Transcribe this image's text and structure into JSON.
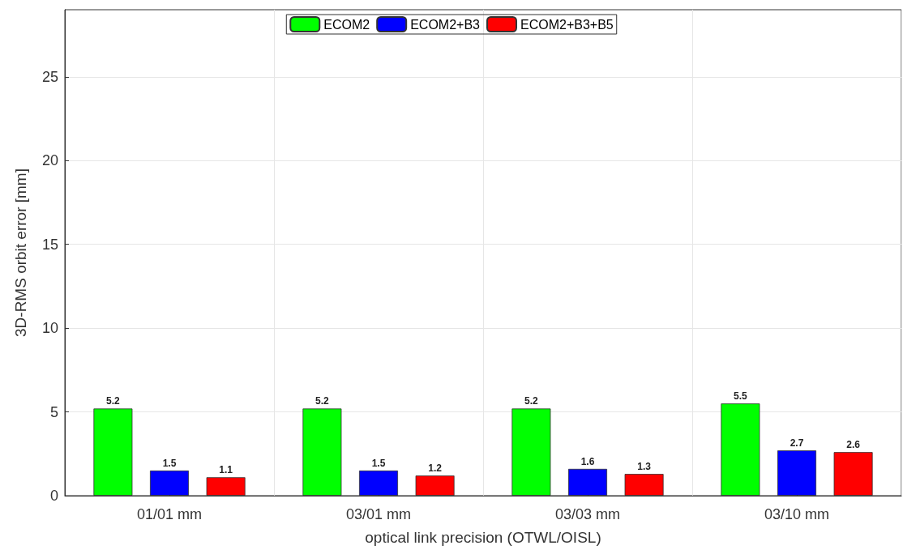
{
  "chart_data": {
    "type": "bar",
    "xlabel": "optical link precision (OTWL/OISL)",
    "ylabel": "3D-RMS orbit error [mm]",
    "categories": [
      "01/01 mm",
      "03/01 mm",
      "03/03 mm",
      "03/10 mm"
    ],
    "series": [
      {
        "name": "ECOM2",
        "color": "#00ff00",
        "values": [
          5.2,
          5.2,
          5.2,
          5.5
        ]
      },
      {
        "name": "ECOM2+B3",
        "color": "#0000ff",
        "values": [
          1.5,
          1.5,
          1.6,
          2.7
        ]
      },
      {
        "name": "ECOM2+B3+B5",
        "color": "#ff0000",
        "values": [
          1.1,
          1.2,
          1.3,
          2.6
        ]
      }
    ],
    "ylim": [
      0,
      29
    ],
    "yticks": [
      0,
      5,
      10,
      15,
      20,
      25
    ],
    "grid": true,
    "legend": "top",
    "data_labels": true
  }
}
